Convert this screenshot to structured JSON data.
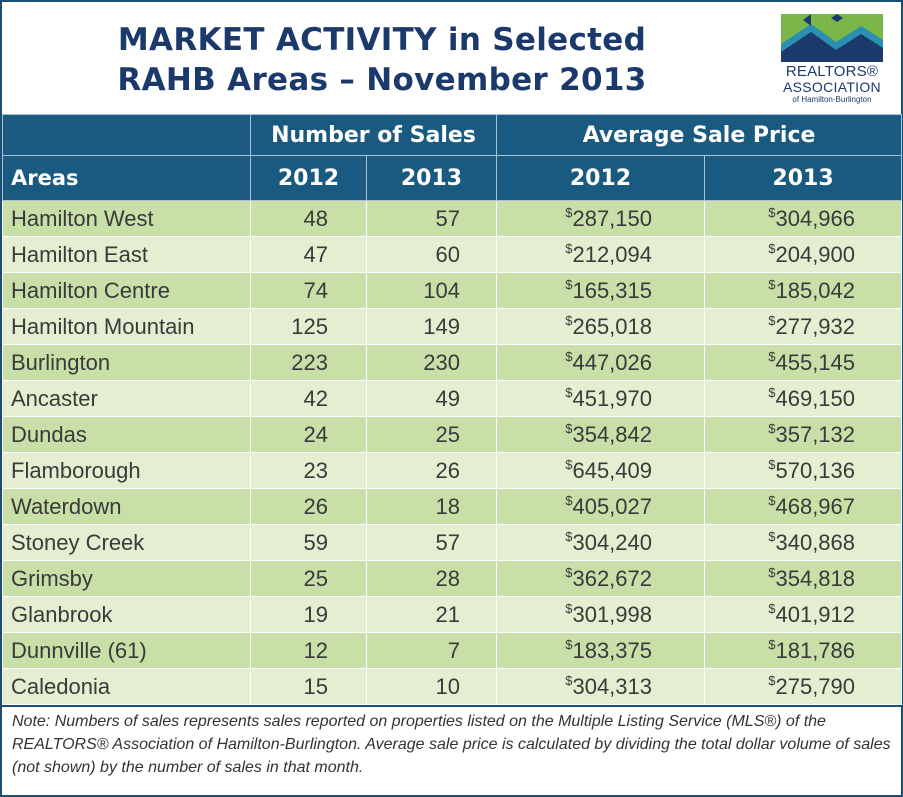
{
  "header": {
    "title_line1": "MARKET ACTIVITY in Selected",
    "title_line2": "RAHB Areas – November 2013"
  },
  "logo": {
    "line1": "REALTORS®",
    "line2": "ASSOCIATION",
    "line3": "of Hamilton-Burlington",
    "colors": {
      "navy": "#1b3a6b",
      "green": "#7ab648",
      "teal": "#2a8fb0"
    }
  },
  "table": {
    "group_headers": {
      "sales": "Number of Sales",
      "price": "Average Sale Price"
    },
    "col_headers": {
      "areas": "Areas",
      "sales_2012": "2012",
      "sales_2013": "2013",
      "price_2012": "2012",
      "price_2013": "2013"
    },
    "currency_symbol": "$",
    "rows": [
      {
        "area": "Hamilton West",
        "s12": "48",
        "s13": "57",
        "p12": "287,150",
        "p13": "304,966"
      },
      {
        "area": "Hamilton East",
        "s12": "47",
        "s13": "60",
        "p12": "212,094",
        "p13": "204,900"
      },
      {
        "area": "Hamilton Centre",
        "s12": "74",
        "s13": "104",
        "p12": "165,315",
        "p13": "185,042"
      },
      {
        "area": "Hamilton Mountain",
        "s12": "125",
        "s13": "149",
        "p12": "265,018",
        "p13": "277,932"
      },
      {
        "area": "Burlington",
        "s12": "223",
        "s13": "230",
        "p12": "447,026",
        "p13": "455,145"
      },
      {
        "area": "Ancaster",
        "s12": "42",
        "s13": "49",
        "p12": "451,970",
        "p13": "469,150"
      },
      {
        "area": "Dundas",
        "s12": "24",
        "s13": "25",
        "p12": "354,842",
        "p13": "357,132"
      },
      {
        "area": "Flamborough",
        "s12": "23",
        "s13": "26",
        "p12": "645,409",
        "p13": "570,136"
      },
      {
        "area": "Waterdown",
        "s12": "26",
        "s13": "18",
        "p12": "405,027",
        "p13": "468,967"
      },
      {
        "area": "Stoney Creek",
        "s12": "59",
        "s13": "57",
        "p12": "304,240",
        "p13": "340,868"
      },
      {
        "area": "Grimsby",
        "s12": "25",
        "s13": "28",
        "p12": "362,672",
        "p13": "354,818"
      },
      {
        "area": "Glanbrook",
        "s12": "19",
        "s13": "21",
        "p12": "301,998",
        "p13": "401,912"
      },
      {
        "area": "Dunnville (61)",
        "s12": "12",
        "s13": "7",
        "p12": "183,375",
        "p13": "181,786"
      },
      {
        "area": "Caledonia",
        "s12": "15",
        "s13": "10",
        "p12": "304,313",
        "p13": "275,790"
      }
    ]
  },
  "note": {
    "text": "Note:  Numbers of sales represents sales reported on properties listed on the Multiple Listing Service (MLS®) of the REALTORS® Association of Hamilton-Burlington.  Average sale price is calculated by dividing the total dollar volume of sales (not shown) by the number of sales in that month."
  }
}
